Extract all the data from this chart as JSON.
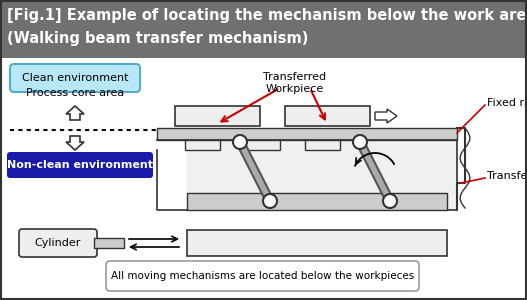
{
  "title_line1": "[Fig.1] Example of locating the mechanism below the work are",
  "title_line2": "(Walking beam transfer mechanism)",
  "title_bg": "#707070",
  "title_color": "white",
  "title_fontsize": 10.5,
  "bg_color": "white",
  "clean_env_label": "Clean environment",
  "clean_env_bg": "#b8e8f8",
  "clean_env_border": "#55aacc",
  "process_label": "Process core area",
  "nonclean_label": "Non-clean environment",
  "nonclean_bg": "#1a1aaa",
  "nonclean_color": "white",
  "transferred_label": "Transferred\nWorkpiece",
  "fixed_rail_label": "Fixed rail",
  "transfer_rail_label": "Transfer rail",
  "cylinder_label": "Cylinder",
  "bottom_label": "All moving mechanisms are located below the workpieces",
  "red": "#cc0000",
  "dark": "#333333",
  "med_gray": "#888888",
  "light_gray": "#cccccc",
  "near_white": "#eeeeee"
}
